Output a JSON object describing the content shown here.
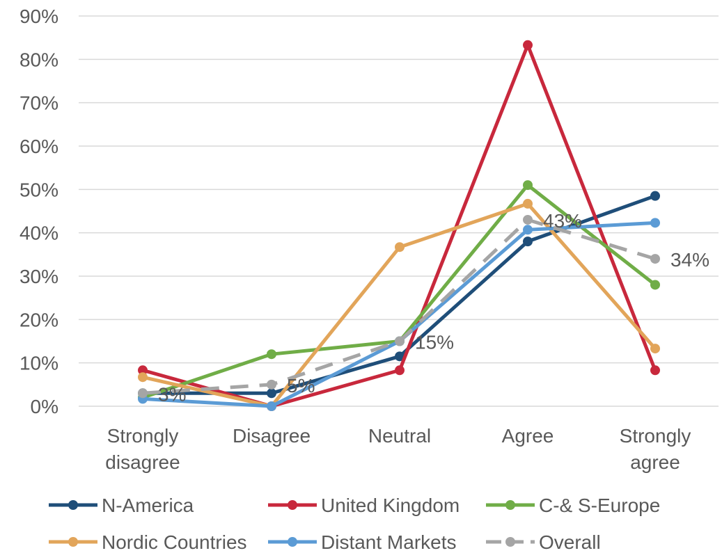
{
  "chart_data": {
    "type": "line",
    "title": "",
    "xlabel": "",
    "ylabel": "",
    "ylim": [
      0,
      90
    ],
    "y_ticks": [
      "0%",
      "10%",
      "20%",
      "30%",
      "40%",
      "50%",
      "60%",
      "70%",
      "80%",
      "90%"
    ],
    "grid": true,
    "legend_position": "bottom",
    "categories": [
      [
        "Strongly",
        "disagree"
      ],
      [
        "Disagree"
      ],
      [
        "Neutral"
      ],
      [
        "Agree"
      ],
      [
        "Strongly",
        "agree"
      ]
    ],
    "series": [
      {
        "name": "N-America",
        "color": "#1f4e79",
        "dashed": false,
        "values": [
          3,
          3,
          11.5,
          38,
          48.5
        ]
      },
      {
        "name": "United Kingdom",
        "color": "#c8283c",
        "dashed": false,
        "values": [
          8.3,
          0,
          8.3,
          83.3,
          8.3
        ]
      },
      {
        "name": "C-& S-Europe",
        "color": "#70ad47",
        "dashed": false,
        "values": [
          2,
          12,
          15,
          51,
          28
        ]
      },
      {
        "name": "Nordic Countries",
        "color": "#e2a55a",
        "dashed": false,
        "values": [
          6.7,
          0,
          36.7,
          46.7,
          13.3
        ]
      },
      {
        "name": "Distant Markets",
        "color": "#5b9bd5",
        "dashed": false,
        "values": [
          1.7,
          0,
          15,
          40.7,
          42.3
        ]
      },
      {
        "name": "Overall",
        "color": "#a5a5a5",
        "dashed": true,
        "values": [
          3,
          5,
          15,
          43,
          34
        ],
        "data_labels": [
          "3%",
          "5%",
          "15%",
          "43%",
          "34%"
        ]
      }
    ]
  }
}
